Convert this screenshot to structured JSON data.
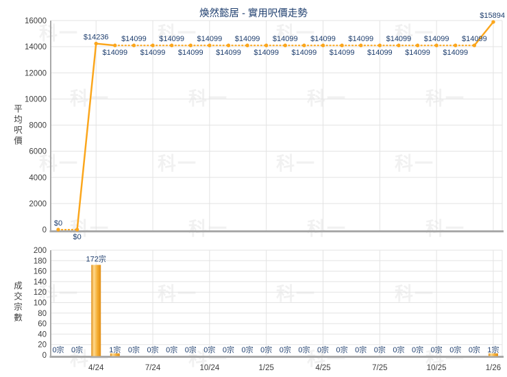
{
  "title": "煥然懿居 - 實用呎價走勢",
  "watermark_text": "科一",
  "colors": {
    "accent_orange": "#FBA61C",
    "label_navy": "#1E3E6E",
    "tick_gray": "#3D3D3D",
    "grid_gray": "#E3E3E3",
    "axis_gray": "#A9A9A9",
    "bar_edge": "#DF8E18",
    "bar_highlight": "#FFD98E",
    "bar_mid": "#F5AC30"
  },
  "chart_data": [
    {
      "type": "line",
      "title": "煥然懿居 - 實用呎價走勢",
      "ylabel": "平均呎價",
      "ylim": [
        0,
        16000
      ],
      "ytick_step": 2000,
      "n_points": 24,
      "values": [
        0,
        0,
        14236,
        14099,
        14099,
        14099,
        14099,
        14099,
        14099,
        14099,
        14099,
        14099,
        14099,
        14099,
        14099,
        14099,
        14099,
        14099,
        14099,
        14099,
        14099,
        14099,
        14099,
        15894
      ],
      "point_labels": [
        "$0",
        "$0",
        "$14236",
        "$14099",
        "$14099",
        "$14099",
        "$14099",
        "$14099",
        "$14099",
        "$14099",
        "$14099",
        "$14099",
        "$14099",
        "$14099",
        "$14099",
        "$14099",
        "$14099",
        "$14099",
        "$14099",
        "$14099",
        "$14099",
        "$14099",
        "$14099",
        "$15894"
      ],
      "label_side": [
        "a",
        "b",
        "a",
        "b",
        "a",
        "b",
        "a",
        "b",
        "a",
        "b",
        "a",
        "b",
        "a",
        "b",
        "a",
        "b",
        "a",
        "b",
        "a",
        "b",
        "a",
        "b",
        "a",
        "a"
      ],
      "xticks": [
        {
          "label": "4/24",
          "index": 2
        },
        {
          "label": "7/24",
          "index": 5
        },
        {
          "label": "10/24",
          "index": 8
        },
        {
          "label": "1/25",
          "index": 11
        },
        {
          "label": "4/25",
          "index": 14
        },
        {
          "label": "7/25",
          "index": 17
        },
        {
          "label": "10/25",
          "index": 20
        },
        {
          "label": "1/26",
          "index": 23
        }
      ],
      "grid": true,
      "legend": "none"
    },
    {
      "type": "bar",
      "ylabel": "成交宗數",
      "ylim": [
        0,
        200
      ],
      "ytick_step": 20,
      "n_points": 24,
      "values": [
        0,
        0,
        172,
        1,
        0,
        0,
        0,
        0,
        0,
        0,
        0,
        0,
        0,
        0,
        0,
        0,
        0,
        0,
        0,
        0,
        0,
        0,
        0,
        1
      ],
      "point_labels": [
        "0宗",
        "0宗",
        "172宗",
        "1宗",
        "0宗",
        "0宗",
        "0宗",
        "0宗",
        "0宗",
        "0宗",
        "0宗",
        "0宗",
        "0宗",
        "0宗",
        "0宗",
        "0宗",
        "0宗",
        "0宗",
        "0宗",
        "0宗",
        "0宗",
        "0宗",
        "0宗",
        "1宗"
      ],
      "xticks": [
        {
          "label": "4/24",
          "index": 2
        },
        {
          "label": "7/24",
          "index": 5
        },
        {
          "label": "10/24",
          "index": 8
        },
        {
          "label": "1/25",
          "index": 11
        },
        {
          "label": "4/25",
          "index": 14
        },
        {
          "label": "7/25",
          "index": 17
        },
        {
          "label": "10/25",
          "index": 20
        },
        {
          "label": "1/26",
          "index": 23
        }
      ],
      "grid": true,
      "legend": "none"
    }
  ]
}
